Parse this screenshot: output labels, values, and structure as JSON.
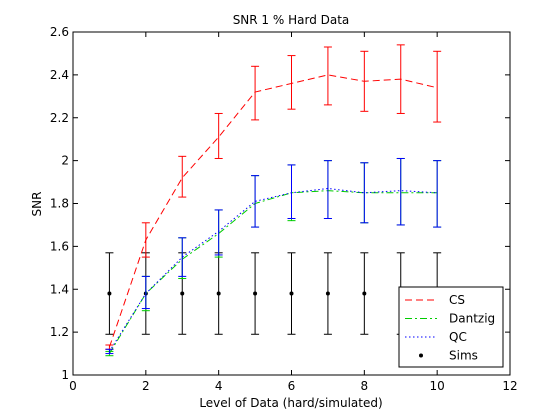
{
  "chart_data": {
    "type": "line",
    "title": "SNR 1 % Hard Data",
    "xlabel": "Level of Data (hard/simulated)",
    "ylabel": "SNR",
    "xlim": [
      0,
      12
    ],
    "ylim": [
      1,
      2.6
    ],
    "xticks": [
      0,
      2,
      4,
      6,
      8,
      10,
      12
    ],
    "yticks": [
      1,
      1.2,
      1.4,
      1.6,
      1.8,
      2,
      2.2,
      2.4,
      2.6
    ],
    "ytick_labels": [
      "1",
      "1.2",
      "1.4",
      "1.6",
      "1.8",
      "2",
      "2.2",
      "2.4",
      "2.6"
    ],
    "grid": false,
    "legend_position": "bottom-right",
    "x": [
      1,
      2,
      3,
      4,
      5,
      6,
      7,
      8,
      9,
      10
    ],
    "series": [
      {
        "name": "CS",
        "color": "#ff0000",
        "line_style": "dashed",
        "values": [
          1.13,
          1.63,
          1.92,
          2.11,
          2.32,
          2.36,
          2.4,
          2.37,
          2.38,
          2.34
        ],
        "err_low": [
          1.12,
          1.55,
          1.83,
          2.01,
          2.19,
          2.24,
          2.26,
          2.23,
          2.22,
          2.18
        ],
        "err_high": [
          1.14,
          1.71,
          2.02,
          2.22,
          2.44,
          2.49,
          2.53,
          2.51,
          2.54,
          2.51
        ]
      },
      {
        "name": "Dantzig",
        "color": "#00cc00",
        "line_style": "dashdot",
        "values": [
          1.1,
          1.38,
          1.54,
          1.66,
          1.8,
          1.85,
          1.86,
          1.85,
          1.85,
          1.85
        ],
        "err_low": [
          1.09,
          1.3,
          1.45,
          1.55,
          1.69,
          1.72,
          1.73,
          1.71,
          1.7,
          1.69
        ],
        "err_high": [
          1.11,
          1.46,
          1.64,
          1.77,
          1.93,
          1.98,
          2.0,
          1.99,
          2.01,
          2.0
        ]
      },
      {
        "name": "QC",
        "color": "#0000ff",
        "line_style": "dotted",
        "values": [
          1.11,
          1.38,
          1.55,
          1.67,
          1.81,
          1.85,
          1.87,
          1.85,
          1.86,
          1.85
        ],
        "err_low": [
          1.1,
          1.31,
          1.46,
          1.56,
          1.69,
          1.73,
          1.73,
          1.71,
          1.7,
          1.69
        ],
        "err_high": [
          1.12,
          1.46,
          1.64,
          1.77,
          1.93,
          1.98,
          2.0,
          1.99,
          2.01,
          2.0
        ]
      },
      {
        "name": "Sims",
        "color": "#000000",
        "line_style": "none",
        "marker": "dot",
        "values": [
          1.38,
          1.38,
          1.38,
          1.38,
          1.38,
          1.38,
          1.38,
          1.38,
          1.38,
          1.38
        ],
        "err_low": [
          1.19,
          1.19,
          1.19,
          1.19,
          1.19,
          1.19,
          1.19,
          1.19,
          1.19,
          1.19
        ],
        "err_high": [
          1.57,
          1.57,
          1.57,
          1.57,
          1.57,
          1.57,
          1.57,
          1.57,
          1.57,
          1.57
        ]
      }
    ]
  }
}
